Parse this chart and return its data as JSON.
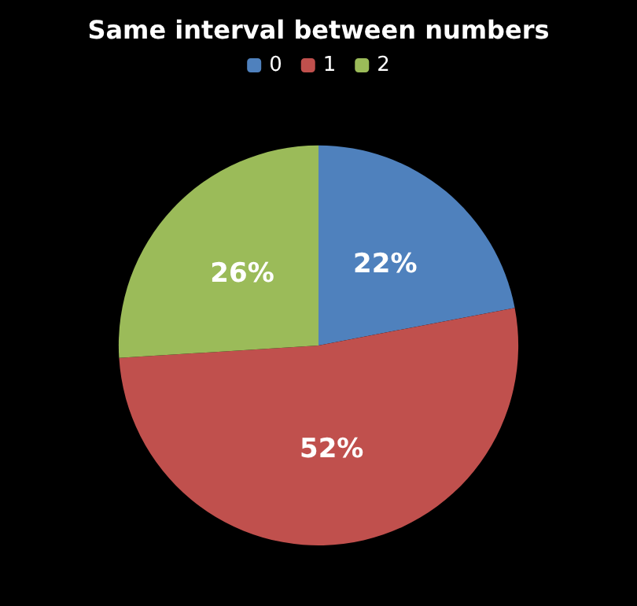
{
  "chart_data": {
    "type": "pie",
    "title": "Same interval between numbers",
    "categories": [
      "0",
      "1",
      "2"
    ],
    "values": [
      22,
      52,
      26
    ],
    "value_labels": [
      "22%",
      "52%",
      "26%"
    ],
    "colors": [
      "#4f81bd",
      "#c0504d",
      "#9bbb59"
    ],
    "legend": "top"
  }
}
